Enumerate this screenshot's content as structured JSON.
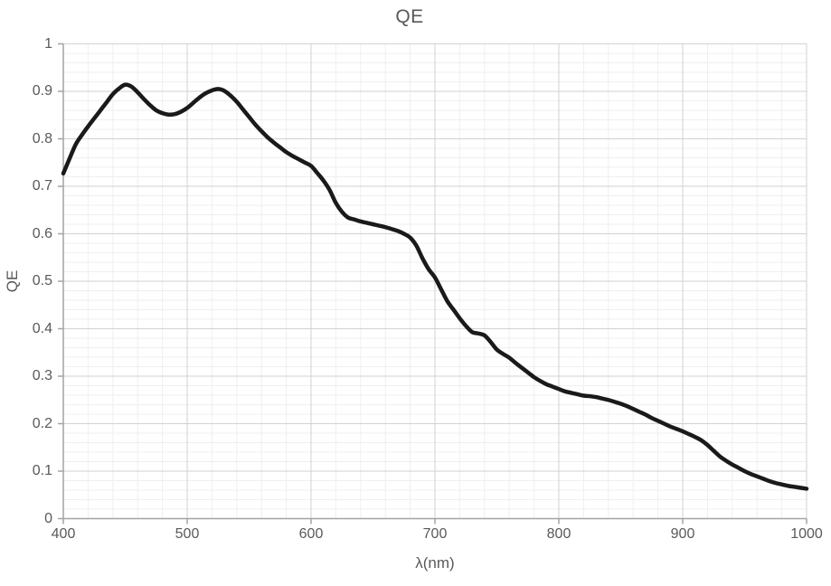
{
  "page": {
    "background": "#ffffff"
  },
  "chart_data": {
    "type": "line",
    "title": "QE",
    "xlabel": "λ(nm)",
    "ylabel": "QE",
    "xlim": [
      400,
      1000
    ],
    "ylim": [
      0,
      1
    ],
    "grid": {
      "major": true,
      "minor": true
    },
    "legend": "none",
    "x_minor_step": 20,
    "y_minor_step": 0.02,
    "x_ticks": [
      {
        "v": 400,
        "label": "400"
      },
      {
        "v": 500,
        "label": "500"
      },
      {
        "v": 600,
        "label": "600"
      },
      {
        "v": 700,
        "label": "700"
      },
      {
        "v": 800,
        "label": "800"
      },
      {
        "v": 900,
        "label": "900"
      },
      {
        "v": 1000,
        "label": "1000"
      }
    ],
    "y_ticks": [
      {
        "v": 0,
        "label": "0"
      },
      {
        "v": 0.1,
        "label": "0.1"
      },
      {
        "v": 0.2,
        "label": "0.2"
      },
      {
        "v": 0.3,
        "label": "0.3"
      },
      {
        "v": 0.4,
        "label": "0.4"
      },
      {
        "v": 0.5,
        "label": "0.5"
      },
      {
        "v": 0.6,
        "label": "0.6"
      },
      {
        "v": 0.7,
        "label": "0.7"
      },
      {
        "v": 0.8,
        "label": "0.8"
      },
      {
        "v": 0.9,
        "label": "0.9"
      },
      {
        "v": 1,
        "label": "1"
      }
    ],
    "colors": {
      "line": "#1a1a1a",
      "major_grid": "#d2d2d2",
      "minor_grid": "#efefef",
      "axis": "#a3a3a3",
      "text": "#595959"
    },
    "series": [
      {
        "name": "QE",
        "points": [
          [
            400,
            0.727
          ],
          [
            405,
            0.758
          ],
          [
            410,
            0.788
          ],
          [
            415,
            0.808
          ],
          [
            420,
            0.826
          ],
          [
            425,
            0.843
          ],
          [
            430,
            0.86
          ],
          [
            435,
            0.877
          ],
          [
            440,
            0.894
          ],
          [
            445,
            0.906
          ],
          [
            450,
            0.914
          ],
          [
            455,
            0.91
          ],
          [
            460,
            0.898
          ],
          [
            465,
            0.884
          ],
          [
            470,
            0.871
          ],
          [
            475,
            0.86
          ],
          [
            480,
            0.854
          ],
          [
            485,
            0.851
          ],
          [
            490,
            0.852
          ],
          [
            495,
            0.857
          ],
          [
            500,
            0.865
          ],
          [
            505,
            0.876
          ],
          [
            510,
            0.887
          ],
          [
            515,
            0.896
          ],
          [
            520,
            0.902
          ],
          [
            525,
            0.905
          ],
          [
            530,
            0.901
          ],
          [
            535,
            0.891
          ],
          [
            540,
            0.878
          ],
          [
            545,
            0.862
          ],
          [
            550,
            0.846
          ],
          [
            555,
            0.83
          ],
          [
            560,
            0.816
          ],
          [
            565,
            0.803
          ],
          [
            570,
            0.792
          ],
          [
            575,
            0.782
          ],
          [
            580,
            0.772
          ],
          [
            585,
            0.764
          ],
          [
            590,
            0.757
          ],
          [
            595,
            0.75
          ],
          [
            600,
            0.743
          ],
          [
            605,
            0.728
          ],
          [
            610,
            0.712
          ],
          [
            615,
            0.692
          ],
          [
            620,
            0.665
          ],
          [
            625,
            0.646
          ],
          [
            630,
            0.634
          ],
          [
            635,
            0.63
          ],
          [
            640,
            0.626
          ],
          [
            645,
            0.623
          ],
          [
            650,
            0.62
          ],
          [
            655,
            0.617
          ],
          [
            660,
            0.614
          ],
          [
            665,
            0.61
          ],
          [
            670,
            0.606
          ],
          [
            675,
            0.6
          ],
          [
            680,
            0.592
          ],
          [
            685,
            0.575
          ],
          [
            690,
            0.548
          ],
          [
            695,
            0.525
          ],
          [
            700,
            0.508
          ],
          [
            705,
            0.483
          ],
          [
            710,
            0.458
          ],
          [
            715,
            0.44
          ],
          [
            720,
            0.422
          ],
          [
            725,
            0.406
          ],
          [
            730,
            0.393
          ],
          [
            735,
            0.39
          ],
          [
            740,
            0.386
          ],
          [
            745,
            0.372
          ],
          [
            750,
            0.356
          ],
          [
            755,
            0.347
          ],
          [
            760,
            0.339
          ],
          [
            765,
            0.328
          ],
          [
            770,
            0.318
          ],
          [
            775,
            0.308
          ],
          [
            780,
            0.298
          ],
          [
            785,
            0.29
          ],
          [
            790,
            0.283
          ],
          [
            795,
            0.278
          ],
          [
            800,
            0.273
          ],
          [
            805,
            0.268
          ],
          [
            810,
            0.265
          ],
          [
            815,
            0.262
          ],
          [
            820,
            0.259
          ],
          [
            825,
            0.258
          ],
          [
            830,
            0.256
          ],
          [
            835,
            0.253
          ],
          [
            840,
            0.25
          ],
          [
            845,
            0.246
          ],
          [
            850,
            0.242
          ],
          [
            855,
            0.237
          ],
          [
            860,
            0.231
          ],
          [
            865,
            0.225
          ],
          [
            870,
            0.219
          ],
          [
            875,
            0.212
          ],
          [
            880,
            0.206
          ],
          [
            885,
            0.2
          ],
          [
            890,
            0.194
          ],
          [
            895,
            0.189
          ],
          [
            900,
            0.184
          ],
          [
            905,
            0.178
          ],
          [
            910,
            0.172
          ],
          [
            915,
            0.165
          ],
          [
            920,
            0.155
          ],
          [
            925,
            0.143
          ],
          [
            930,
            0.131
          ],
          [
            935,
            0.122
          ],
          [
            940,
            0.114
          ],
          [
            945,
            0.107
          ],
          [
            950,
            0.1
          ],
          [
            955,
            0.094
          ],
          [
            960,
            0.089
          ],
          [
            965,
            0.084
          ],
          [
            970,
            0.079
          ],
          [
            975,
            0.075
          ],
          [
            980,
            0.072
          ],
          [
            985,
            0.069
          ],
          [
            990,
            0.067
          ],
          [
            995,
            0.065
          ],
          [
            1000,
            0.063
          ]
        ]
      }
    ]
  }
}
